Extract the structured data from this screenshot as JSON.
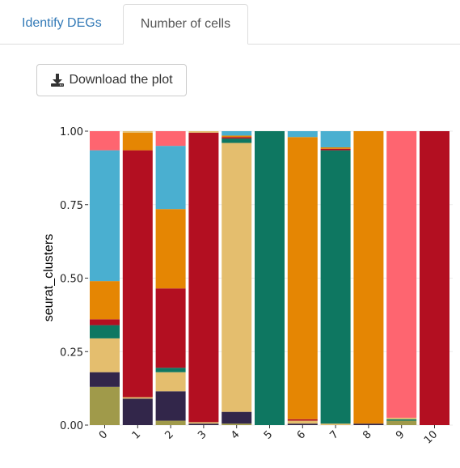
{
  "tabs": [
    {
      "label": "Identify DEGs",
      "active": false
    },
    {
      "label": "Number of cells",
      "active": true
    }
  ],
  "download_button": {
    "label": "Download the plot",
    "icon": "download-icon"
  },
  "chart_data": {
    "type": "bar",
    "stacked": true,
    "normalized": true,
    "categories": [
      "0",
      "1",
      "2",
      "3",
      "4",
      "5",
      "6",
      "7",
      "8",
      "9",
      "10"
    ],
    "xlabel": "",
    "ylabel": "seurat_clusters",
    "ylim": [
      0,
      1
    ],
    "yticks": [
      "0.00",
      "0.25",
      "0.50",
      "0.75",
      "1.00"
    ],
    "grid": true,
    "legend": "none",
    "colors": {
      "olive": "#a09a4a",
      "navy": "#32264a",
      "tan": "#e4be6e",
      "green": "#0e7761",
      "red": "#b30f21",
      "orange": "#e58603",
      "blue": "#4aafd0",
      "salmon": "#fe6570"
    },
    "bars": [
      {
        "category": "0",
        "segments": [
          {
            "color": "olive",
            "value": 0.13
          },
          {
            "color": "navy",
            "value": 0.05
          },
          {
            "color": "tan",
            "value": 0.115
          },
          {
            "color": "green",
            "value": 0.045
          },
          {
            "color": "red",
            "value": 0.02
          },
          {
            "color": "orange",
            "value": 0.13
          },
          {
            "color": "blue",
            "value": 0.445
          },
          {
            "color": "salmon",
            "value": 0.065
          }
        ]
      },
      {
        "category": "1",
        "segments": [
          {
            "color": "navy",
            "value": 0.09
          },
          {
            "color": "tan",
            "value": 0.005
          },
          {
            "color": "red",
            "value": 0.84
          },
          {
            "color": "orange",
            "value": 0.06
          },
          {
            "color": "tan",
            "value": 0.005
          }
        ]
      },
      {
        "category": "2",
        "segments": [
          {
            "color": "olive",
            "value": 0.015
          },
          {
            "color": "navy",
            "value": 0.1
          },
          {
            "color": "tan",
            "value": 0.065
          },
          {
            "color": "green",
            "value": 0.015
          },
          {
            "color": "red",
            "value": 0.27
          },
          {
            "color": "orange",
            "value": 0.27
          },
          {
            "color": "blue",
            "value": 0.215
          },
          {
            "color": "salmon",
            "value": 0.05
          }
        ]
      },
      {
        "category": "3",
        "segments": [
          {
            "color": "navy",
            "value": 0.005
          },
          {
            "color": "tan",
            "value": 0.005
          },
          {
            "color": "red",
            "value": 0.985
          },
          {
            "color": "tan",
            "value": 0.005
          }
        ]
      },
      {
        "category": "4",
        "segments": [
          {
            "color": "olive",
            "value": 0.005
          },
          {
            "color": "navy",
            "value": 0.04
          },
          {
            "color": "tan",
            "value": 0.915
          },
          {
            "color": "green",
            "value": 0.015
          },
          {
            "color": "red",
            "value": 0.005
          },
          {
            "color": "orange",
            "value": 0.005
          },
          {
            "color": "blue",
            "value": 0.015
          }
        ]
      },
      {
        "category": "5",
        "segments": [
          {
            "color": "green",
            "value": 1.0
          }
        ]
      },
      {
        "category": "6",
        "segments": [
          {
            "color": "navy",
            "value": 0.005
          },
          {
            "color": "tan",
            "value": 0.01
          },
          {
            "color": "red",
            "value": 0.005
          },
          {
            "color": "orange",
            "value": 0.96
          },
          {
            "color": "blue",
            "value": 0.02
          }
        ]
      },
      {
        "category": "7",
        "segments": [
          {
            "color": "tan",
            "value": 0.005
          },
          {
            "color": "green",
            "value": 0.93
          },
          {
            "color": "red",
            "value": 0.005
          },
          {
            "color": "orange",
            "value": 0.005
          },
          {
            "color": "blue",
            "value": 0.055
          }
        ]
      },
      {
        "category": "8",
        "segments": [
          {
            "color": "navy",
            "value": 0.005
          },
          {
            "color": "orange",
            "value": 0.995
          }
        ]
      },
      {
        "category": "9",
        "segments": [
          {
            "color": "olive",
            "value": 0.015
          },
          {
            "color": "green",
            "value": 0.005
          },
          {
            "color": "tan",
            "value": 0.005
          },
          {
            "color": "salmon",
            "value": 0.975
          }
        ]
      },
      {
        "category": "10",
        "segments": [
          {
            "color": "red",
            "value": 1.0
          }
        ]
      }
    ]
  }
}
